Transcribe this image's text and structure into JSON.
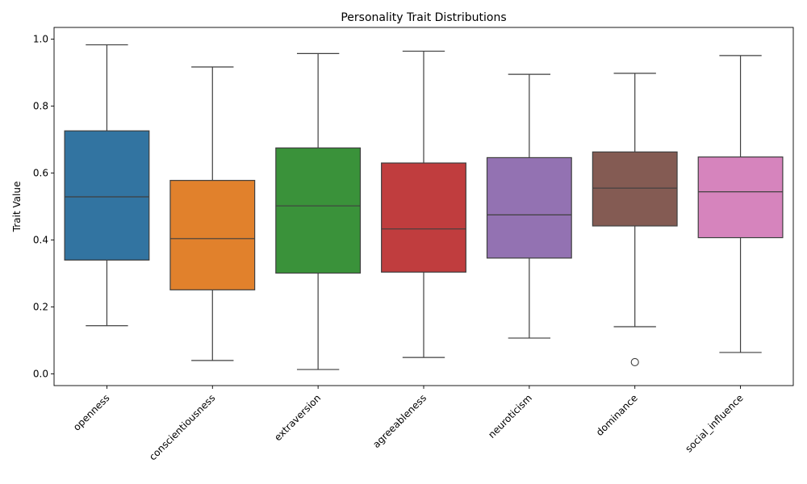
{
  "chart_data": {
    "type": "box",
    "title": "Personality Trait Distributions",
    "xlabel": "",
    "ylabel": "Trait Value",
    "ylim": [
      -0.035,
      1.035
    ],
    "yticks": [
      0.0,
      0.2,
      0.4,
      0.6,
      0.8,
      1.0
    ],
    "ytick_labels": [
      "0.0",
      "0.2",
      "0.4",
      "0.6",
      "0.8",
      "1.0"
    ],
    "grid": false,
    "categories": [
      "openness",
      "conscientiousness",
      "extraversion",
      "agreeableness",
      "neuroticism",
      "dominance",
      "social_influence"
    ],
    "boxes": [
      {
        "category": "openness",
        "whisker_low": 0.144,
        "q1": 0.34,
        "median": 0.529,
        "q3": 0.726,
        "whisker_high": 0.983,
        "outliers": [],
        "color": "#3274a1"
      },
      {
        "category": "conscientiousness",
        "whisker_low": 0.04,
        "q1": 0.251,
        "median": 0.404,
        "q3": 0.578,
        "whisker_high": 0.917,
        "outliers": [],
        "color": "#e1812c"
      },
      {
        "category": "extraversion",
        "whisker_low": 0.013,
        "q1": 0.301,
        "median": 0.502,
        "q3": 0.675,
        "whisker_high": 0.957,
        "outliers": [],
        "color": "#3a923a"
      },
      {
        "category": "agreeableness",
        "whisker_low": 0.049,
        "q1": 0.304,
        "median": 0.433,
        "q3": 0.63,
        "whisker_high": 0.964,
        "outliers": [],
        "color": "#c03d3e"
      },
      {
        "category": "neuroticism",
        "whisker_low": 0.107,
        "q1": 0.346,
        "median": 0.475,
        "q3": 0.646,
        "whisker_high": 0.895,
        "outliers": [],
        "color": "#9372b2"
      },
      {
        "category": "dominance",
        "whisker_low": 0.141,
        "q1": 0.442,
        "median": 0.555,
        "q3": 0.663,
        "whisker_high": 0.898,
        "outliers": [
          0.035
        ],
        "color": "#845b53"
      },
      {
        "category": "social_influence",
        "whisker_low": 0.064,
        "q1": 0.407,
        "median": 0.544,
        "q3": 0.648,
        "whisker_high": 0.951,
        "outliers": [],
        "color": "#d684bd"
      }
    ]
  }
}
